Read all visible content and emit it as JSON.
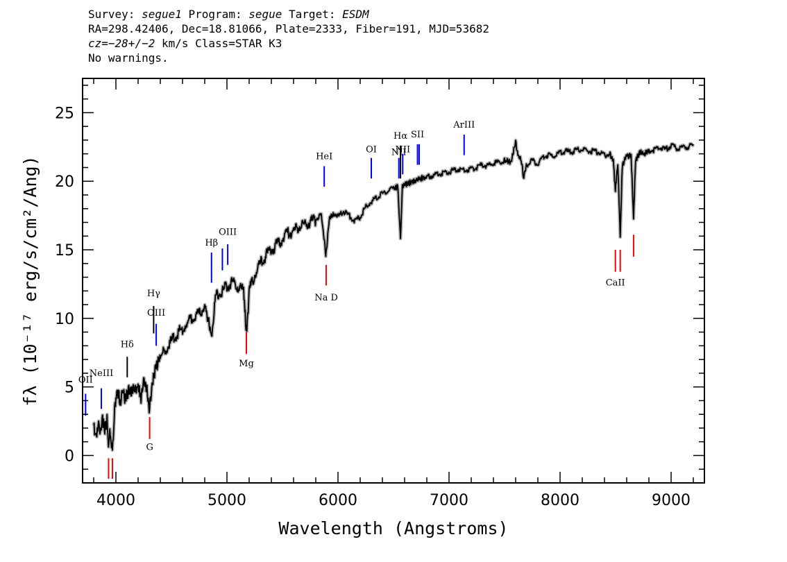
{
  "header": {
    "survey_label": "Survey:",
    "survey": "segue1",
    "program_label": "Program:",
    "program": "segue",
    "target_label": "Target:",
    "target": "ESDM",
    "line2": "RA=298.42406, Dec=18.81066, Plate=2333, Fiber=191, MJD=53682",
    "cz_label": "cz=",
    "cz_value": "−28+/−2",
    "cz_rest": " km/s Class=STAR K3",
    "warnings": "No warnings."
  },
  "chart_data": {
    "type": "line",
    "xlabel": "Wavelength (Angstroms)",
    "ylabel": "fλ (10⁻¹⁷ erg/s/cm²/Ang)",
    "xlim": [
      3700,
      9300
    ],
    "ylim": [
      -2,
      27.5
    ],
    "xticks": [
      4000,
      5000,
      6000,
      7000,
      8000,
      9000
    ],
    "yticks": [
      0,
      5,
      10,
      15,
      20,
      25
    ],
    "grid": false,
    "colors": {
      "spectrum": "#000000",
      "error": "#b4b4b4",
      "emission": "#0000ff",
      "absorption": "#ff0000",
      "neutral": "#000000"
    },
    "series": [
      {
        "values": [
          [
            3800,
            2.4
          ],
          [
            3820,
            1.6
          ],
          [
            3840,
            2.5
          ],
          [
            3860,
            2.0
          ],
          [
            3880,
            2.8
          ],
          [
            3900,
            2.2
          ],
          [
            3920,
            2.8
          ],
          [
            3933,
            0.5
          ],
          [
            3945,
            2.5
          ],
          [
            3968,
            0.3
          ],
          [
            3985,
            3.2
          ],
          [
            4000,
            4.5
          ],
          [
            4020,
            4.8
          ],
          [
            4040,
            4.2
          ],
          [
            4060,
            4.9
          ],
          [
            4080,
            4.4
          ],
          [
            4100,
            4.6
          ],
          [
            4120,
            5.1
          ],
          [
            4140,
            4.7
          ],
          [
            4160,
            5.2
          ],
          [
            4180,
            4.9
          ],
          [
            4200,
            5.4
          ],
          [
            4226,
            4.3
          ],
          [
            4250,
            5.6
          ],
          [
            4280,
            5.1
          ],
          [
            4300,
            3.6
          ],
          [
            4330,
            5.7
          ],
          [
            4360,
            6.6
          ],
          [
            4380,
            7.1
          ],
          [
            4400,
            7.4
          ],
          [
            4450,
            7.9
          ],
          [
            4500,
            8.5
          ],
          [
            4550,
            9.1
          ],
          [
            4600,
            9.5
          ],
          [
            4650,
            9.9
          ],
          [
            4700,
            10.3
          ],
          [
            4750,
            10.5
          ],
          [
            4800,
            11.2
          ],
          [
            4861,
            9.0
          ],
          [
            4900,
            11.8
          ],
          [
            4950,
            12.1
          ],
          [
            5000,
            12.6
          ],
          [
            5050,
            12.8
          ],
          [
            5100,
            12.5
          ],
          [
            5150,
            12.3
          ],
          [
            5172,
            9.6
          ],
          [
            5183,
            9.8
          ],
          [
            5200,
            12.2
          ],
          [
            5250,
            13.4
          ],
          [
            5300,
            14.2
          ],
          [
            5350,
            14.8
          ],
          [
            5400,
            15.2
          ],
          [
            5450,
            15.6
          ],
          [
            5500,
            16.0
          ],
          [
            5550,
            16.4
          ],
          [
            5600,
            16.6
          ],
          [
            5650,
            16.9
          ],
          [
            5700,
            17.1
          ],
          [
            5750,
            17.3
          ],
          [
            5800,
            17.4
          ],
          [
            5850,
            17.6
          ],
          [
            5890,
            14.8
          ],
          [
            5896,
            15.1
          ],
          [
            5920,
            17.3
          ],
          [
            5960,
            17.7
          ],
          [
            6000,
            17.5
          ],
          [
            6050,
            17.9
          ],
          [
            6100,
            17.6
          ],
          [
            6150,
            17.2
          ],
          [
            6200,
            17.5
          ],
          [
            6250,
            18.2
          ],
          [
            6300,
            18.6
          ],
          [
            6350,
            18.9
          ],
          [
            6400,
            19.2
          ],
          [
            6450,
            19.4
          ],
          [
            6500,
            19.6
          ],
          [
            6540,
            19.7
          ],
          [
            6563,
            15.8
          ],
          [
            6580,
            19.8
          ],
          [
            6620,
            19.9
          ],
          [
            6680,
            20.1
          ],
          [
            6740,
            20.3
          ],
          [
            6800,
            20.4
          ],
          [
            6850,
            20.5
          ],
          [
            6900,
            20.6
          ],
          [
            6950,
            20.7
          ],
          [
            7000,
            20.8
          ],
          [
            7050,
            20.9
          ],
          [
            7100,
            21.0
          ],
          [
            7150,
            20.9
          ],
          [
            7200,
            21.0
          ],
          [
            7250,
            21.1
          ],
          [
            7300,
            21.3
          ],
          [
            7350,
            21.2
          ],
          [
            7400,
            21.4
          ],
          [
            7450,
            21.5
          ],
          [
            7500,
            21.6
          ],
          [
            7560,
            21.5
          ],
          [
            7600,
            23.0
          ],
          [
            7620,
            22.0
          ],
          [
            7650,
            21.7
          ],
          [
            7670,
            20.4
          ],
          [
            7700,
            21.3
          ],
          [
            7750,
            21.6
          ],
          [
            7800,
            21.4
          ],
          [
            7850,
            21.9
          ],
          [
            7900,
            22.0
          ],
          [
            7950,
            21.9
          ],
          [
            8000,
            22.2
          ],
          [
            8050,
            22.3
          ],
          [
            8100,
            22.2
          ],
          [
            8150,
            22.4
          ],
          [
            8200,
            22.4
          ],
          [
            8250,
            22.3
          ],
          [
            8300,
            22.3
          ],
          [
            8350,
            22.2
          ],
          [
            8400,
            22.0
          ],
          [
            8450,
            22.1
          ],
          [
            8480,
            21.6
          ],
          [
            8498,
            19.4
          ],
          [
            8520,
            21.3
          ],
          [
            8542,
            16.1
          ],
          [
            8560,
            21.2
          ],
          [
            8600,
            22.0
          ],
          [
            8640,
            21.9
          ],
          [
            8662,
            17.5
          ],
          [
            8680,
            21.6
          ],
          [
            8720,
            22.2
          ],
          [
            8760,
            22.1
          ],
          [
            8800,
            22.3
          ],
          [
            8850,
            22.4
          ],
          [
            8900,
            22.6
          ],
          [
            8950,
            22.4
          ],
          [
            9000,
            22.7
          ],
          [
            9050,
            22.5
          ],
          [
            9100,
            22.6
          ],
          [
            9150,
            22.6
          ],
          [
            9200,
            22.7
          ]
        ]
      }
    ],
    "lines": [
      {
        "label": "OII",
        "x": 3727,
        "y0": 2.9,
        "y1": 4.5,
        "color": "blue",
        "label_y": 5.3
      },
      {
        "label": "NeIII",
        "x": 3869,
        "y0": 3.4,
        "y1": 4.9,
        "color": "blue",
        "label_y": 5.8
      },
      {
        "label": "Hδ",
        "x": 4102,
        "y0": 5.7,
        "y1": 7.2,
        "color": "black",
        "label_y": 7.9
      },
      {
        "label": "Hγ",
        "x": 4340,
        "y0": 8.9,
        "y1": 10.9,
        "color": "black",
        "label_y": 11.6
      },
      {
        "label": "OIII",
        "x": 4363,
        "y0": 8.0,
        "y1": 9.6,
        "color": "blue",
        "label_y": 10.2
      },
      {
        "label": "Hβ",
        "x": 4861,
        "y0": 12.6,
        "y1": 14.8,
        "color": "blue",
        "label_y": 15.3
      },
      {
        "label": "",
        "x": 4959,
        "y0": 13.5,
        "y1": 15.1,
        "color": "blue",
        "label_y": 0
      },
      {
        "label": "OIII",
        "x": 5007,
        "y0": 13.9,
        "y1": 15.4,
        "color": "blue",
        "label_y": 16.1
      },
      {
        "label": "HeI",
        "x": 5876,
        "y0": 19.6,
        "y1": 21.1,
        "color": "blue",
        "label_y": 21.6
      },
      {
        "label": "OI",
        "x": 6300,
        "y0": 20.2,
        "y1": 21.7,
        "color": "blue",
        "label_y": 22.1
      },
      {
        "label": "NII",
        "x": 6548,
        "y0": 20.2,
        "y1": 21.7,
        "color": "blue",
        "label_y": 21.9
      },
      {
        "label": "Hα",
        "x": 6563,
        "y0": 20.2,
        "y1": 22.6,
        "color": "black",
        "label_y": 23.1
      },
      {
        "label": "NII",
        "x": 6583,
        "y0": 20.5,
        "y1": 22.0,
        "color": "blue",
        "label_y": 22.1
      },
      {
        "label": "SII",
        "x": 6716,
        "y0": 21.2,
        "y1": 22.7,
        "color": "blue",
        "label_y": 23.2
      },
      {
        "label": "",
        "x": 6731,
        "y0": 21.2,
        "y1": 22.7,
        "color": "blue",
        "label_y": 0
      },
      {
        "label": "ArIII",
        "x": 7136,
        "y0": 21.9,
        "y1": 23.4,
        "color": "blue",
        "label_y": 23.9
      },
      {
        "label": "",
        "x": 3934,
        "y0": -1.7,
        "y1": -0.2,
        "color": "red",
        "label_y": 0
      },
      {
        "label": "",
        "x": 3969,
        "y0": -1.7,
        "y1": -0.2,
        "color": "red",
        "label_y": 0
      },
      {
        "label": "G",
        "x": 4304,
        "y0": 1.2,
        "y1": 2.8,
        "color": "red",
        "label_y": 0.4
      },
      {
        "label": "Mg",
        "x": 5175,
        "y0": 7.4,
        "y1": 9.0,
        "color": "red",
        "label_y": 6.5
      },
      {
        "label": "Na D",
        "x": 5894,
        "y0": 12.4,
        "y1": 13.9,
        "color": "red",
        "label_y": 11.3
      },
      {
        "label": "CaII",
        "x": 8498,
        "y0": 13.4,
        "y1": 15.0,
        "color": "red",
        "label_y": 12.4
      },
      {
        "label": "",
        "x": 8542,
        "y0": 13.4,
        "y1": 15.0,
        "color": "red",
        "label_y": 0
      },
      {
        "label": "",
        "x": 8662,
        "y0": 14.5,
        "y1": 16.1,
        "color": "red",
        "label_y": 0
      }
    ]
  }
}
